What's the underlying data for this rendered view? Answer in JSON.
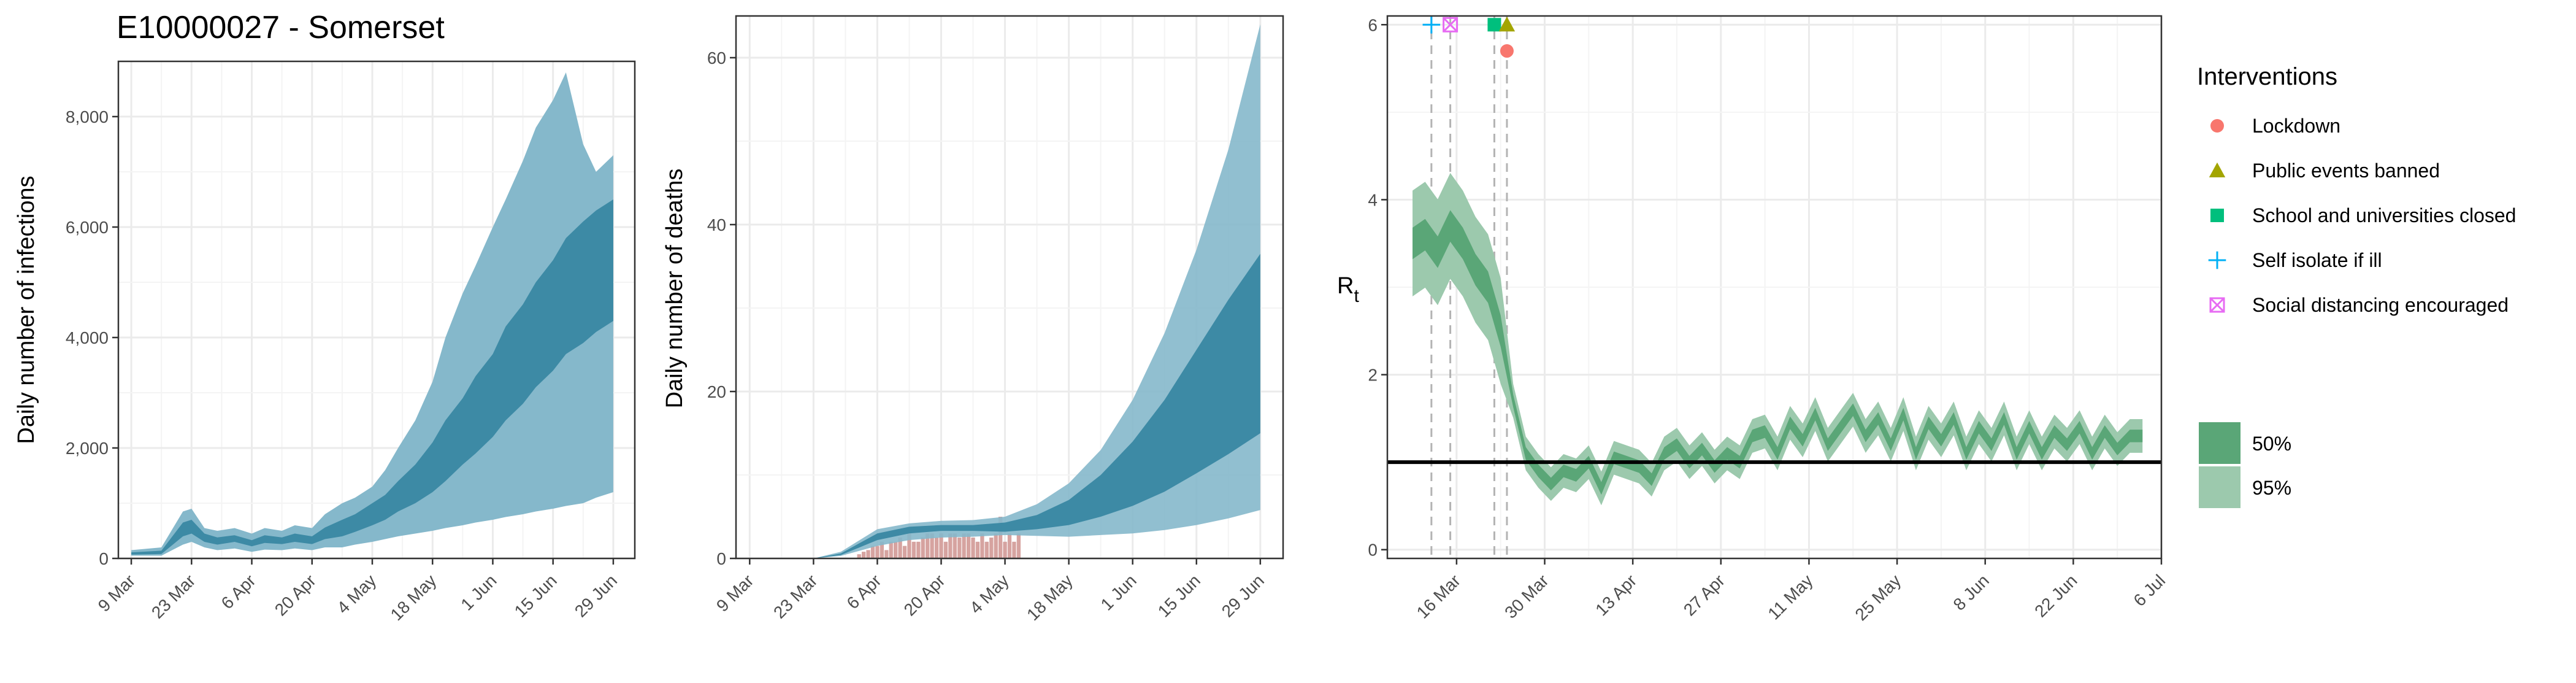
{
  "figure_title": "E10000027 - Somerset",
  "colors": {
    "band95_blue": "#85b8cb",
    "band50_blue": "#3d8aa5",
    "median_blue": "#2a7f9c",
    "band95_green": "#9cc9ad",
    "band50_green": "#5aa677",
    "median_green": "#3a8a5a",
    "bars": "#d6a3a0",
    "grid": "#ebebeb",
    "lockdown": "#f8766d",
    "public_events": "#a3a500",
    "schools": "#00bf7d",
    "self_isolate": "#00b0f6",
    "social_distancing": "#e76bf3"
  },
  "legend": {
    "title": "Interventions",
    "items": [
      {
        "label": "Lockdown",
        "icon": "circle-icon",
        "color": "#f8766d"
      },
      {
        "label": "Public events banned",
        "icon": "triangle-icon",
        "color": "#a3a500"
      },
      {
        "label": "School and universities closed",
        "icon": "square-icon",
        "color": "#00bf7d"
      },
      {
        "label": "Self isolate if ill",
        "icon": "plus-icon",
        "color": "#00b0f6"
      },
      {
        "label": "Social distancing encouraged",
        "icon": "boxed-x-icon",
        "color": "#e76bf3"
      }
    ],
    "bands": [
      {
        "label": "50%",
        "color": "#5aa677"
      },
      {
        "label": "95%",
        "color": "#9cc9ad"
      }
    ]
  },
  "chart_data": [
    {
      "type": "area",
      "title": "E10000027 - Somerset",
      "xlabel": "",
      "ylabel": "Daily number of infections",
      "x_ticks": [
        "9 Mar",
        "23 Mar",
        "6 Apr",
        "20 Apr",
        "4 May",
        "18 May",
        "1 Jun",
        "15 Jun",
        "29 Jun"
      ],
      "y_ticks": [
        "0",
        "2,000",
        "4,000",
        "6,000",
        "8,000"
      ],
      "ylim": [
        0,
        9000
      ],
      "x_start": "2020-03-09",
      "series": [
        {
          "name": "95%",
          "x": [
            0,
            7,
            12,
            14,
            17,
            20,
            24,
            28,
            31,
            35,
            38,
            42,
            45,
            49,
            52,
            56,
            59,
            62,
            66,
            70,
            73,
            77,
            80,
            84,
            87,
            91,
            94,
            98,
            101,
            105,
            108,
            112
          ],
          "lower": [
            50,
            50,
            250,
            300,
            200,
            150,
            180,
            120,
            160,
            150,
            180,
            150,
            200,
            200,
            250,
            300,
            350,
            400,
            450,
            500,
            550,
            600,
            650,
            700,
            750,
            800,
            850,
            900,
            950,
            1000,
            1100,
            1200
          ],
          "upper": [
            150,
            200,
            850,
            900,
            550,
            500,
            550,
            450,
            550,
            500,
            600,
            550,
            800,
            1000,
            1100,
            1300,
            1600,
            2000,
            2500,
            3200,
            4000,
            4800,
            5300,
            6000,
            6500,
            7200,
            7800,
            8300,
            8800,
            7500,
            7000,
            7300
          ]
        },
        {
          "name": "50%",
          "x": [
            0,
            7,
            12,
            14,
            17,
            20,
            24,
            28,
            31,
            35,
            38,
            42,
            45,
            49,
            52,
            56,
            59,
            62,
            66,
            70,
            73,
            77,
            80,
            84,
            87,
            91,
            94,
            98,
            101,
            105,
            108,
            112
          ],
          "lower": [
            70,
            80,
            400,
            450,
            300,
            250,
            300,
            220,
            280,
            260,
            300,
            260,
            350,
            400,
            480,
            600,
            700,
            850,
            1000,
            1200,
            1400,
            1700,
            1900,
            2200,
            2500,
            2800,
            3100,
            3400,
            3700,
            3900,
            4100,
            4300
          ],
          "upper": [
            110,
            140,
            650,
            700,
            450,
            380,
            420,
            330,
            420,
            380,
            450,
            400,
            560,
            700,
            800,
            1000,
            1150,
            1400,
            1700,
            2100,
            2500,
            2900,
            3300,
            3700,
            4200,
            4600,
            5000,
            5400,
            5800,
            6100,
            6300,
            6500
          ]
        }
      ]
    },
    {
      "type": "area",
      "xlabel": "",
      "ylabel": "Daily number of deaths",
      "x_ticks": [
        "9 Mar",
        "23 Mar",
        "6 Apr",
        "20 Apr",
        "4 May",
        "18 May",
        "1 Jun",
        "15 Jun",
        "29 Jun"
      ],
      "y_ticks": [
        "0",
        "20",
        "40",
        "60"
      ],
      "ylim": [
        0,
        65
      ],
      "x_start": "2020-03-09",
      "series": [
        {
          "name": "95%",
          "x": [
            0,
            14,
            20,
            28,
            35,
            42,
            49,
            56,
            63,
            70,
            77,
            84,
            91,
            98,
            105,
            112
          ],
          "lower": [
            0,
            0,
            0.3,
            1.5,
            2.2,
            2.5,
            2.6,
            2.8,
            2.7,
            2.6,
            2.8,
            3.0,
            3.4,
            4.0,
            4.8,
            5.8
          ],
          "upper": [
            0,
            0,
            0.8,
            3.5,
            4.2,
            4.5,
            4.6,
            5.0,
            6.5,
            9.0,
            13.0,
            19.0,
            27.0,
            37.0,
            49.0,
            64.0
          ]
        },
        {
          "name": "50%",
          "x": [
            0,
            14,
            20,
            28,
            35,
            42,
            49,
            56,
            63,
            70,
            77,
            84,
            91,
            98,
            105,
            112
          ],
          "lower": [
            0,
            0,
            0.4,
            2.2,
            3.0,
            3.3,
            3.3,
            3.2,
            3.5,
            4.0,
            5.0,
            6.3,
            8.0,
            10.2,
            12.5,
            15.0
          ],
          "upper": [
            0,
            0,
            0.6,
            3.0,
            3.8,
            4.0,
            4.0,
            4.3,
            5.2,
            7.0,
            10.0,
            14.0,
            19.0,
            25.0,
            31.0,
            36.5
          ]
        }
      ],
      "observed_deaths": {
        "x": [
          24,
          25,
          26,
          27,
          28,
          29,
          30,
          31,
          32,
          33,
          34,
          35,
          36,
          37,
          38,
          39,
          40,
          41,
          42,
          43,
          44,
          45,
          46,
          47,
          48,
          49,
          50,
          51,
          52,
          53,
          54,
          55,
          56,
          57,
          58,
          59
        ],
        "values": [
          0.5,
          0.8,
          1,
          1.5,
          1.5,
          2,
          1,
          2,
          2,
          2.5,
          1.5,
          3,
          2,
          2,
          2.5,
          3,
          3,
          2.5,
          3,
          2,
          3,
          3,
          2.5,
          3,
          3,
          2.5,
          2,
          3,
          2,
          2.5,
          3,
          5,
          2,
          3,
          2,
          3
        ]
      }
    },
    {
      "type": "line",
      "xlabel": "",
      "ylabel": "R",
      "ylabel_subscript": "t",
      "x_ticks": [
        "16 Mar",
        "30 Mar",
        "13 Apr",
        "27 Apr",
        "11 May",
        "25 May",
        "8 Jun",
        "22 Jun",
        "6 Jul"
      ],
      "y_ticks": [
        "0",
        "2",
        "4",
        "6"
      ],
      "ylim": [
        -0.1,
        6.1
      ],
      "x_start": "2020-03-09",
      "reference_line": 1,
      "interventions": [
        {
          "name": "Self isolate if ill",
          "day": 3,
          "y": 6.0
        },
        {
          "name": "Social distancing encouraged",
          "day": 6,
          "y": 6.0
        },
        {
          "name": "School and universities closed",
          "day": 13,
          "y": 6.0
        },
        {
          "name": "Public events banned",
          "day": 15,
          "y": 6.0
        },
        {
          "name": "Lockdown",
          "day": 15,
          "y": 5.7
        }
      ],
      "series": [
        {
          "name": "median",
          "x": [
            0,
            2,
            4,
            6,
            8,
            10,
            12,
            14,
            16,
            18,
            20,
            22,
            24,
            26,
            28,
            30,
            32,
            34,
            36,
            38,
            40,
            42,
            44,
            46,
            48,
            50,
            52,
            54,
            56,
            58,
            60,
            62,
            64,
            66,
            68,
            70,
            72,
            74,
            76,
            78,
            80,
            82,
            84,
            86,
            88,
            90,
            92,
            94,
            96,
            98,
            100,
            102,
            104,
            106,
            108,
            110,
            112,
            114,
            116
          ],
          "median": [
            3.5,
            3.6,
            3.4,
            3.7,
            3.5,
            3.2,
            3.0,
            2.5,
            1.7,
            1.1,
            0.9,
            0.75,
            0.9,
            0.85,
            1.0,
            0.7,
            1.05,
            1.0,
            0.95,
            0.8,
            1.1,
            1.2,
            1.0,
            1.15,
            0.95,
            1.1,
            1.0,
            1.3,
            1.35,
            1.1,
            1.45,
            1.25,
            1.55,
            1.2,
            1.4,
            1.6,
            1.3,
            1.5,
            1.2,
            1.55,
            1.1,
            1.45,
            1.25,
            1.5,
            1.1,
            1.4,
            1.2,
            1.5,
            1.1,
            1.4,
            1.1,
            1.35,
            1.2,
            1.4,
            1.1,
            1.35,
            1.15,
            1.3,
            1.3
          ]
        }
      ],
      "band_width_50": 0.18,
      "band_width_95": 0.55
    }
  ]
}
